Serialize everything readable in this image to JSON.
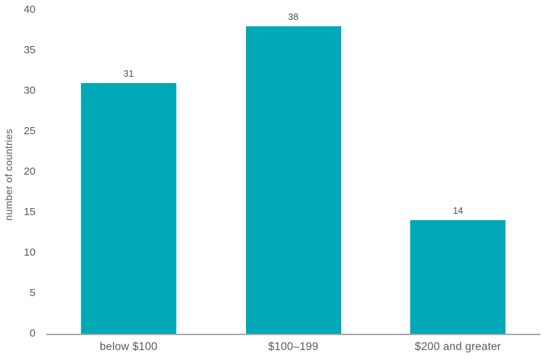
{
  "chart_data": {
    "type": "bar",
    "title": "",
    "categories": [
      "below $100",
      "$100–199",
      "$200 and greater"
    ],
    "values": [
      31,
      38,
      14
    ],
    "value_labels": [
      "31",
      "38",
      "14"
    ],
    "xlabel": "",
    "ylabel": "number of countries",
    "ylim": [
      0,
      40
    ],
    "yticks": [
      0,
      5,
      10,
      15,
      20,
      25,
      30,
      35,
      40
    ],
    "grid": false,
    "legend_position": "none",
    "bar_color": "#00a8b8",
    "axis_color": "#a6a6a6",
    "tick_text_color": "#595959",
    "value_label_color": "#4d4d4d"
  }
}
